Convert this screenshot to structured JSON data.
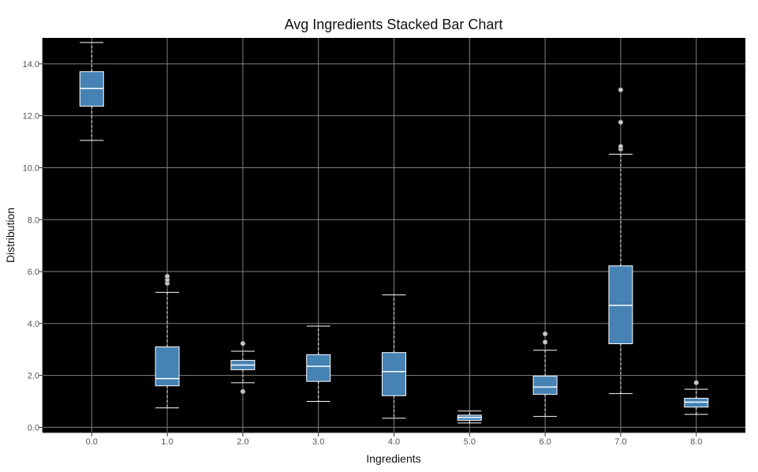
{
  "chart_data": {
    "type": "box",
    "title": "Avg Ingredients Stacked Bar Chart",
    "xlabel": "Ingredients",
    "ylabel": "Distribution",
    "ylim": [
      -0.2,
      15.0
    ],
    "xlim": [
      -0.65,
      8.65
    ],
    "yticks": [
      0.0,
      2.0,
      4.0,
      6.0,
      8.0,
      10.0,
      12.0,
      14.0
    ],
    "ytick_labels": [
      "0.0",
      "2.0",
      "4.0",
      "6.0",
      "8.0",
      "10.0",
      "12.0",
      "14.0"
    ],
    "categories": [
      "0.0",
      "1.0",
      "2.0",
      "3.0",
      "4.0",
      "5.0",
      "6.0",
      "7.0",
      "8.0"
    ],
    "grid": true,
    "colors": {
      "plot_background": "#000000",
      "box_fill": "#4682b4",
      "box_edge": "#ffffff",
      "median": "#ffffff",
      "whisker": "#ffffff",
      "grid": "#808080",
      "flier": "#c8c8c8"
    },
    "boxes": [
      {
        "x": 0.0,
        "whislo": 11.05,
        "q1": 12.37,
        "med": 13.05,
        "q3": 13.7,
        "whishi": 14.82,
        "fliers": []
      },
      {
        "x": 1.0,
        "whislo": 0.75,
        "q1": 1.6,
        "med": 1.88,
        "q3": 3.1,
        "whishi": 5.2,
        "fliers": [
          5.55,
          5.68,
          5.82
        ]
      },
      {
        "x": 2.0,
        "whislo": 1.72,
        "q1": 2.22,
        "med": 2.4,
        "q3": 2.58,
        "whishi": 2.93,
        "fliers": [
          1.38,
          3.23
        ]
      },
      {
        "x": 3.0,
        "whislo": 1.0,
        "q1": 1.77,
        "med": 2.35,
        "q3": 2.8,
        "whishi": 3.9,
        "fliers": []
      },
      {
        "x": 4.0,
        "whislo": 0.35,
        "q1": 1.22,
        "med": 2.15,
        "q3": 2.88,
        "whishi": 5.1,
        "fliers": []
      },
      {
        "x": 5.0,
        "whislo": 0.17,
        "q1": 0.27,
        "med": 0.38,
        "q3": 0.47,
        "whishi": 0.63,
        "fliers": []
      },
      {
        "x": 6.0,
        "whislo": 0.42,
        "q1": 1.27,
        "med": 1.55,
        "q3": 1.97,
        "whishi": 2.97,
        "fliers": [
          3.28,
          3.6
        ]
      },
      {
        "x": 7.0,
        "whislo": 1.3,
        "q1": 3.22,
        "med": 4.7,
        "q3": 6.22,
        "whishi": 10.52,
        "fliers": [
          10.72,
          10.82,
          11.75,
          13.0
        ]
      },
      {
        "x": 8.0,
        "whislo": 0.5,
        "q1": 0.78,
        "med": 0.97,
        "q3": 1.12,
        "whishi": 1.47,
        "fliers": [
          1.72
        ]
      }
    ]
  }
}
